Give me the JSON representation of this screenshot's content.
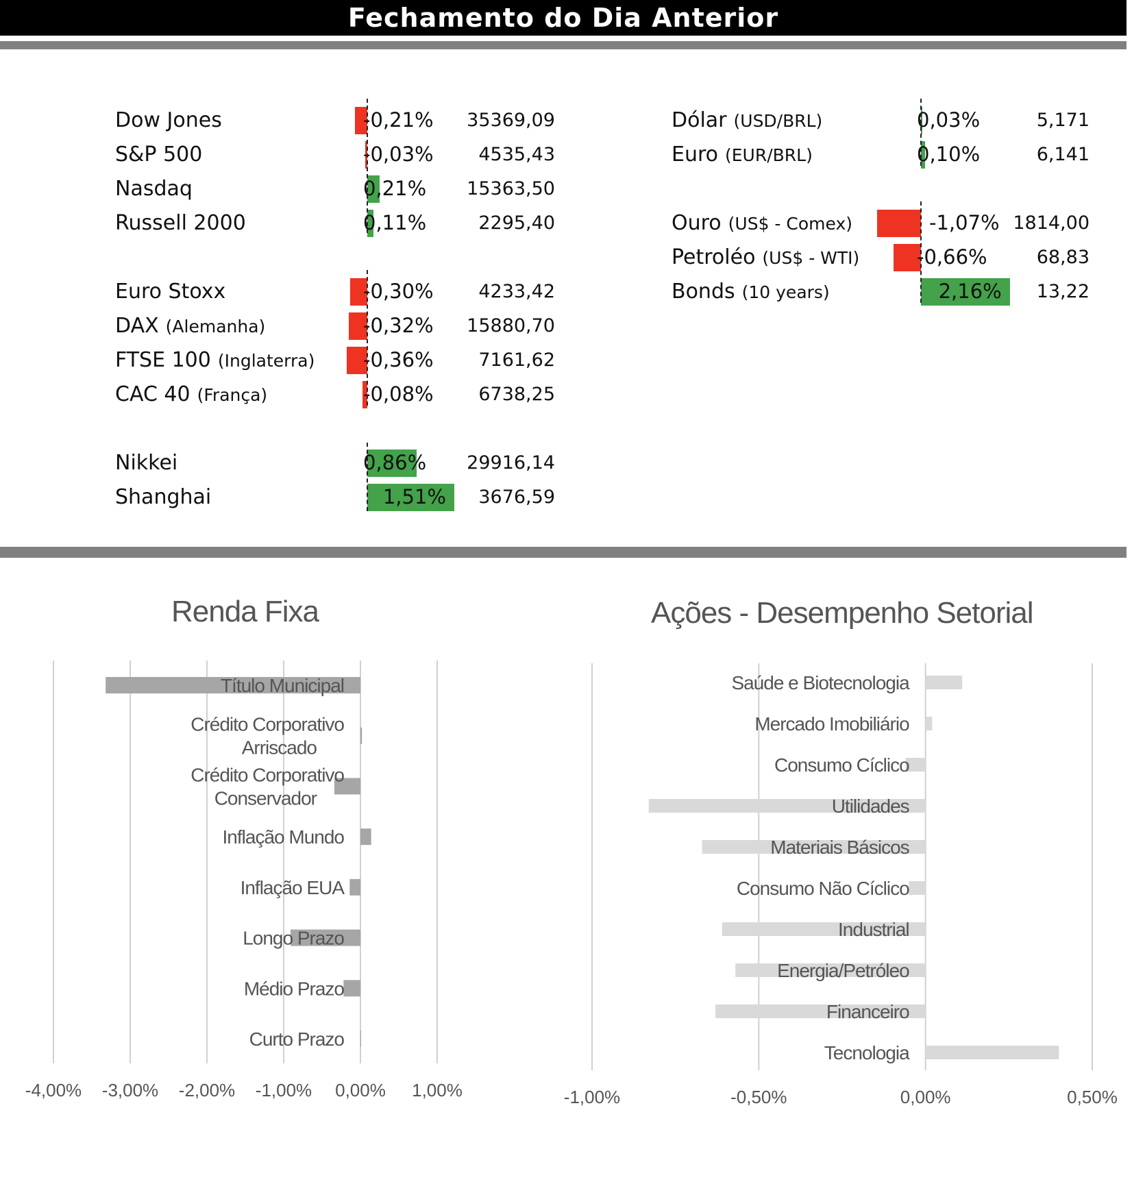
{
  "header": {
    "title": "Fechamento do Dia Anterior"
  },
  "colors": {
    "negative": "#ee3322",
    "positive": "#44a24a",
    "rule": "#808080",
    "renda_bar": "#a6a6a6",
    "acoes_bar": "#d9d9d9"
  },
  "markets_left": [
    {
      "name": "Dow Jones",
      "sub": "",
      "pct": "-0,21%",
      "value": "35369,09",
      "change": -0.21
    },
    {
      "name": "S&P 500",
      "sub": "",
      "pct": "-0,03%",
      "value": "4535,43",
      "change": -0.03
    },
    {
      "name": "Nasdaq",
      "sub": "",
      "pct": "0,21%",
      "value": "15363,50",
      "change": 0.21
    },
    {
      "name": "Russell 2000",
      "sub": "",
      "pct": "0,11%",
      "value": "2295,40",
      "change": 0.11
    },
    {
      "name": "Euro Stoxx",
      "sub": "",
      "pct": "-0,30%",
      "value": "4233,42",
      "change": -0.3
    },
    {
      "name": "DAX",
      "sub": "(Alemanha)",
      "pct": "-0,32%",
      "value": "15880,70",
      "change": -0.32
    },
    {
      "name": "FTSE 100",
      "sub": "(Inglaterra)",
      "pct": "-0,36%",
      "value": "7161,62",
      "change": -0.36
    },
    {
      "name": "CAC 40",
      "sub": "(França)",
      "pct": "-0,08%",
      "value": "6738,25",
      "change": -0.08
    },
    {
      "name": "Nikkei",
      "sub": "",
      "pct": "0,86%",
      "value": "29916,14",
      "change": 0.86
    },
    {
      "name": "Shanghai",
      "sub": "",
      "pct": "1,51%",
      "value": "3676,59",
      "change": 1.51
    }
  ],
  "markets_right": [
    {
      "name": "Dólar",
      "sub": "(USD/BRL)",
      "pct": "0,03%",
      "value": "5,171",
      "change": 0.03
    },
    {
      "name": "Euro",
      "sub": "(EUR/BRL)",
      "pct": "0,10%",
      "value": "6,141",
      "change": 0.1
    },
    {
      "name": "Ouro",
      "sub": "(US$ - Comex)",
      "pct": "-1,07%",
      "value": "1814,00",
      "change": -1.07
    },
    {
      "name": "Petroléo",
      "sub": "(US$ - WTI)",
      "pct": "-0,66%",
      "value": "68,83",
      "change": -0.66
    },
    {
      "name": "Bonds",
      "sub": "(10 years)",
      "pct": "2,16%",
      "value": "13,22",
      "change": 2.16
    }
  ],
  "chart_data": [
    {
      "type": "bar",
      "orientation": "horizontal",
      "title": "Renda Fixa",
      "categories": [
        "Título Municipal",
        "Crédito Corporativo Arriscado",
        "Crédito Corporativo Conservador",
        "Inflação Mundo",
        "Inflação EUA",
        "Longo Prazo",
        "Médio Prazo",
        "Curto Prazo"
      ],
      "values": [
        -3.32,
        0.02,
        -0.34,
        0.14,
        -0.14,
        -0.91,
        -0.22,
        0.0
      ],
      "xlim": [
        -4.0,
        1.0
      ],
      "xticks": [
        "-4,00%",
        "-3,00%",
        "-2,00%",
        "-1,00%",
        "0,00%",
        "1,00%"
      ],
      "grid": true,
      "legend": "none"
    },
    {
      "type": "bar",
      "orientation": "horizontal",
      "title": "Ações - Desempenho Setorial",
      "categories": [
        "Saúde e Biotecnologia",
        "Mercado Imobiliário",
        "Consumo Cíclico",
        "Utilidades",
        "Materiais Básicos",
        "Consumo Não Cíclico",
        "Industrial",
        "Energia/Petróleo",
        "Financeiro",
        "Tecnologia"
      ],
      "values": [
        0.11,
        0.02,
        -0.06,
        -0.83,
        -0.67,
        -0.05,
        -0.61,
        -0.57,
        -0.63,
        0.4
      ],
      "xlim": [
        -1.0,
        0.5
      ],
      "xticks": [
        "-1,00%",
        "-0,50%",
        "0,00%",
        "0,50%"
      ],
      "grid": true,
      "legend": "none"
    }
  ]
}
